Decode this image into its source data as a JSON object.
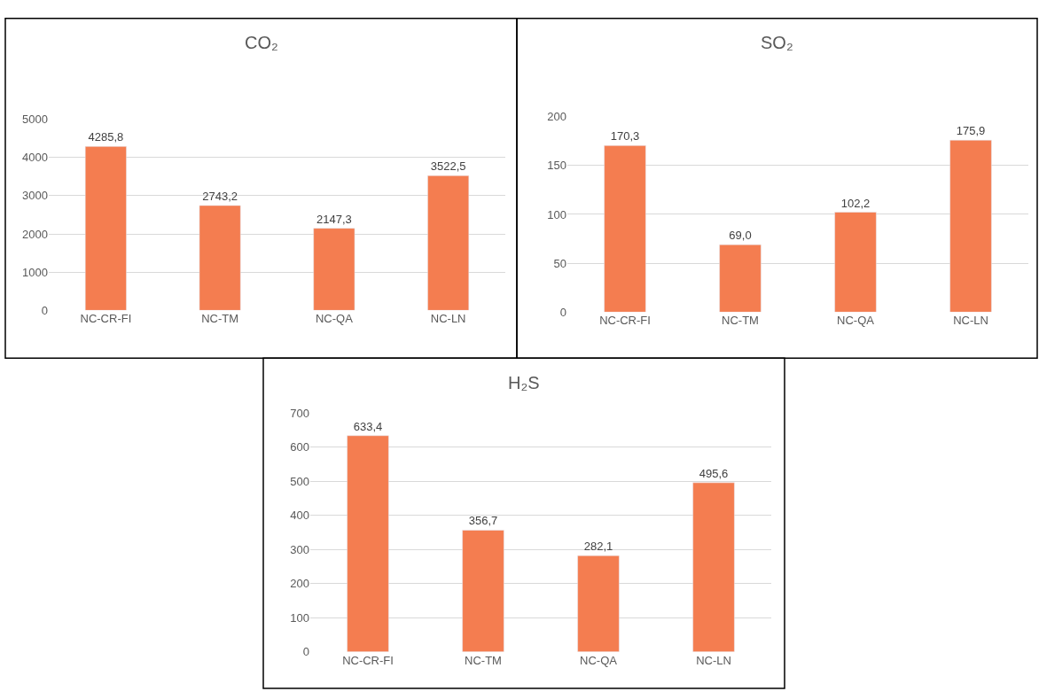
{
  "chart_data": [
    {
      "type": "bar",
      "title": "CO₂",
      "categories": [
        "NC-CR-FI",
        "NC-TM",
        "NC-QA",
        "NC-LN"
      ],
      "values": [
        4285.8,
        2743.2,
        2147.3,
        3522.5
      ],
      "value_labels": [
        "4285,8",
        "2743,2",
        "2147,3",
        "3522,5"
      ],
      "color": "#f47d50",
      "ylim": [
        0,
        5000
      ],
      "yticks": [
        0,
        1000,
        2000,
        3000,
        4000,
        5000
      ],
      "grid": "y",
      "legend": false
    },
    {
      "type": "bar",
      "title": "SO₂",
      "categories": [
        "NC-CR-FI",
        "NC-TM",
        "NC-QA",
        "NC-LN"
      ],
      "values": [
        170.3,
        69.0,
        102.2,
        175.9
      ],
      "value_labels": [
        "170,3",
        "69,0",
        "102,2",
        "175,9"
      ],
      "color": "#f47d50",
      "ylim": [
        0,
        200
      ],
      "yticks": [
        0,
        50,
        100,
        150,
        200
      ],
      "grid": "y",
      "legend": false
    },
    {
      "type": "bar",
      "title": "H₂S",
      "categories": [
        "NC-CR-FI",
        "NC-TM",
        "NC-QA",
        "NC-LN"
      ],
      "values": [
        633.4,
        356.7,
        282.1,
        495.6
      ],
      "value_labels": [
        "633,4",
        "356,7",
        "282,1",
        "495,6"
      ],
      "color": "#f47d50",
      "ylim": [
        0,
        700
      ],
      "yticks": [
        0,
        100,
        200,
        300,
        400,
        500,
        600,
        700
      ],
      "grid": "y",
      "legend": false
    }
  ]
}
